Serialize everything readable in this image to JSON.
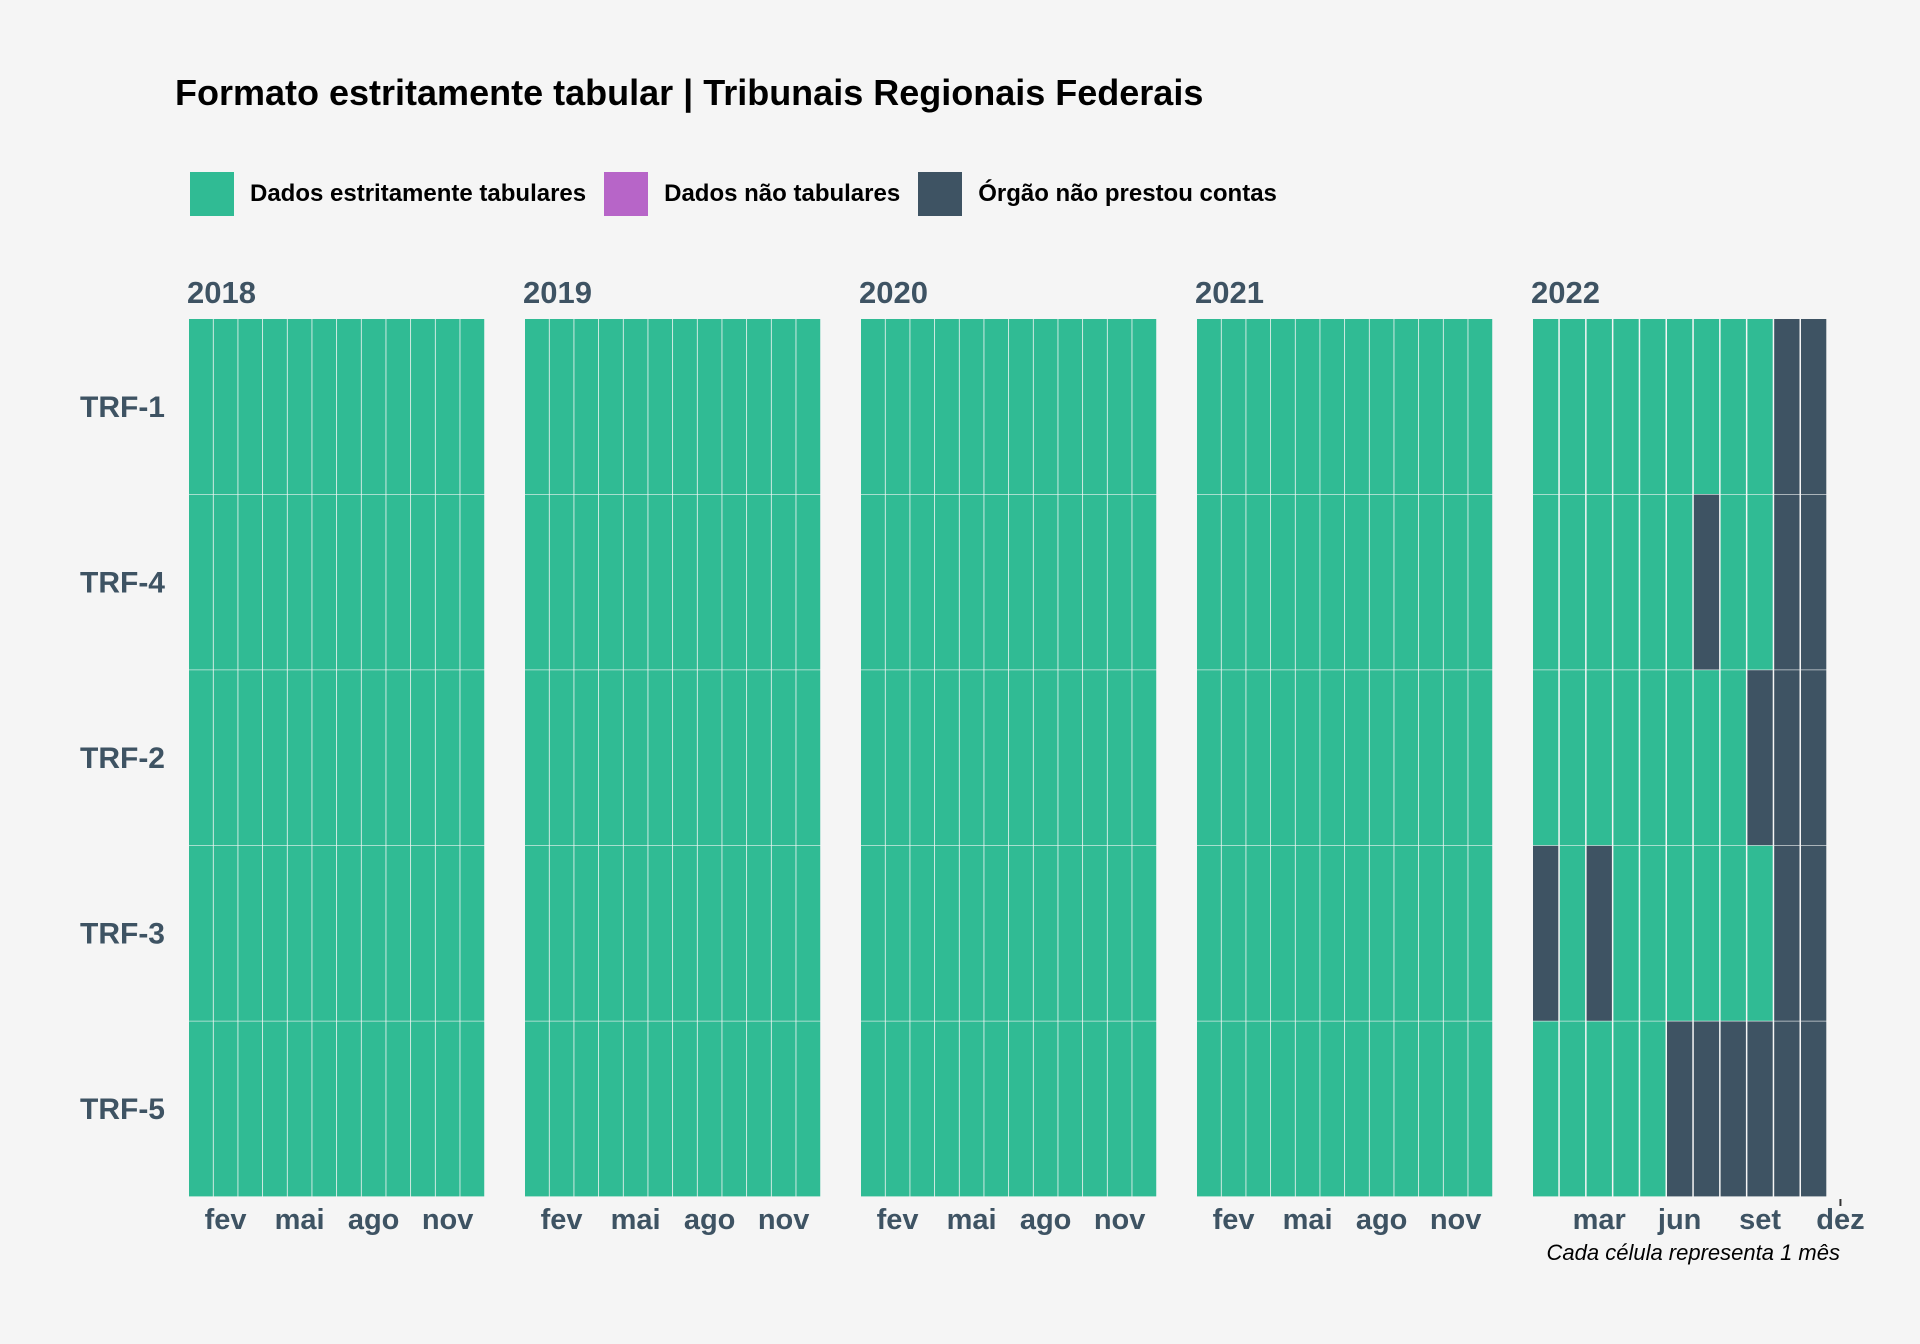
{
  "chart_data": {
    "type": "heatmap",
    "title": "Formato estritamente tabular | Tribunais Regionais Federais",
    "caption": "Cada célula representa 1 mês",
    "legend": {
      "position": "top-left",
      "items": [
        {
          "key": "tab",
          "label": "Dados estritamente tabulares",
          "color": "#30bb94"
        },
        {
          "key": "nontab",
          "label": "Dados não tabulares",
          "color": "#b765c8"
        },
        {
          "key": "none",
          "label": "Órgão não prestou contas",
          "color": "#3e5363"
        }
      ]
    },
    "colors": {
      "tab": "#30bb94",
      "nontab": "#b765c8",
      "none": "#3e5363",
      "text": "#3e5363"
    },
    "rows": [
      "TRF-1",
      "TRF-4",
      "TRF-2",
      "TRF-3",
      "TRF-5"
    ],
    "panels": [
      {
        "year": "2018",
        "ticks": [
          {
            "month": 2,
            "label": "fev"
          },
          {
            "month": 5,
            "label": "mai"
          },
          {
            "month": 8,
            "label": "ago"
          },
          {
            "month": 11,
            "label": "nov"
          }
        ],
        "months": [
          1,
          2,
          3,
          4,
          5,
          6,
          7,
          8,
          9,
          10,
          11,
          12
        ]
      },
      {
        "year": "2019",
        "ticks": [
          {
            "month": 2,
            "label": "fev"
          },
          {
            "month": 5,
            "label": "mai"
          },
          {
            "month": 8,
            "label": "ago"
          },
          {
            "month": 11,
            "label": "nov"
          }
        ],
        "months": [
          1,
          2,
          3,
          4,
          5,
          6,
          7,
          8,
          9,
          10,
          11,
          12
        ]
      },
      {
        "year": "2020",
        "ticks": [
          {
            "month": 2,
            "label": "fev"
          },
          {
            "month": 5,
            "label": "mai"
          },
          {
            "month": 8,
            "label": "ago"
          },
          {
            "month": 11,
            "label": "nov"
          }
        ],
        "months": [
          1,
          2,
          3,
          4,
          5,
          6,
          7,
          8,
          9,
          10,
          11,
          12
        ]
      },
      {
        "year": "2021",
        "ticks": [
          {
            "month": 2,
            "label": "fev"
          },
          {
            "month": 5,
            "label": "mai"
          },
          {
            "month": 8,
            "label": "ago"
          },
          {
            "month": 11,
            "label": "nov"
          }
        ],
        "months": [
          1,
          2,
          3,
          4,
          5,
          6,
          7,
          8,
          9,
          10,
          11,
          12
        ]
      },
      {
        "year": "2022",
        "ticks": [
          {
            "month": 3,
            "label": "mar"
          },
          {
            "month": 6,
            "label": "jun"
          },
          {
            "month": 9,
            "label": "set"
          },
          {
            "month": 12,
            "label": "dez"
          }
        ],
        "months": [
          1,
          2,
          3,
          4,
          5,
          6,
          7,
          8,
          9,
          10,
          11
        ]
      }
    ],
    "status_2022": {
      "TRF-1": [
        "tab",
        "tab",
        "tab",
        "tab",
        "tab",
        "tab",
        "tab",
        "tab",
        "tab",
        "none",
        "none"
      ],
      "TRF-4": [
        "tab",
        "tab",
        "tab",
        "tab",
        "tab",
        "tab",
        "none",
        "tab",
        "tab",
        "none",
        "none"
      ],
      "TRF-2": [
        "tab",
        "tab",
        "tab",
        "tab",
        "tab",
        "tab",
        "tab",
        "tab",
        "none",
        "none",
        "none"
      ],
      "TRF-3": [
        "none",
        "tab",
        "none",
        "tab",
        "tab",
        "tab",
        "tab",
        "tab",
        "tab",
        "none",
        "none"
      ],
      "TRF-5": [
        "tab",
        "tab",
        "tab",
        "tab",
        "tab",
        "none",
        "none",
        "none",
        "none",
        "none",
        "none"
      ]
    },
    "default_status": "tab"
  }
}
